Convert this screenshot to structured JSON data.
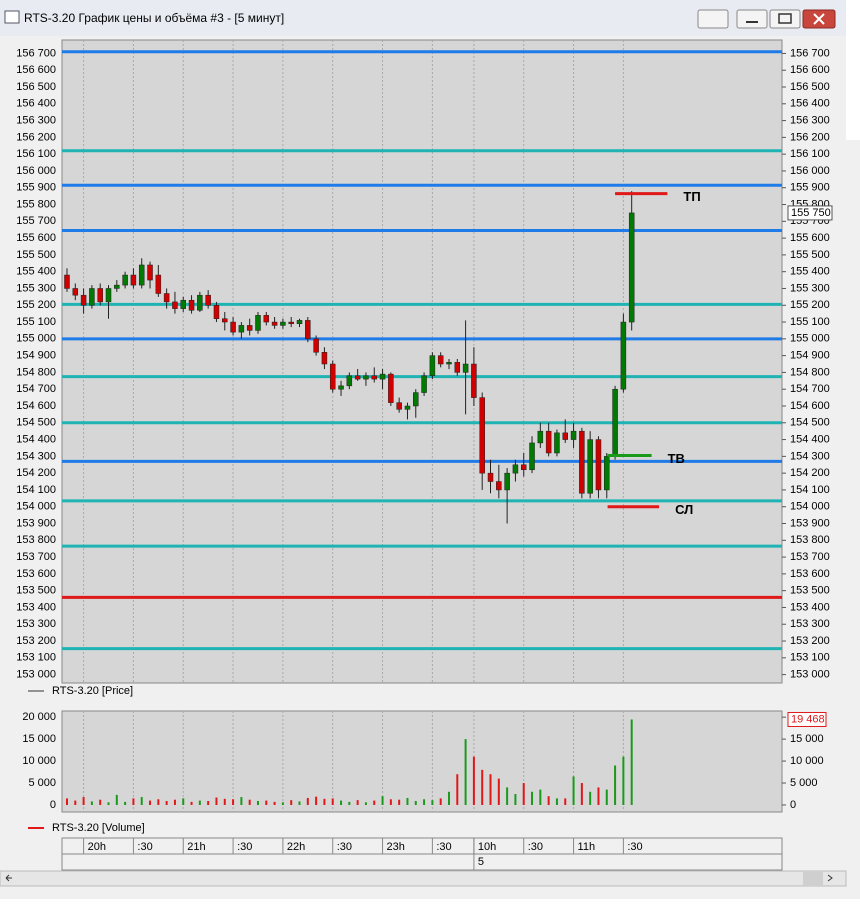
{
  "window": {
    "title": "RTS-3.20 График цены и объёма #3 - [5 минут]"
  },
  "price_chart": {
    "type": "candlestick",
    "legend": "RTS-3.20 [Price]",
    "up_color": "#007a00",
    "down_color": "#d00000",
    "open": [
      155380,
      155300,
      155260,
      155200,
      155300,
      155220,
      155300,
      155320,
      155380,
      155320,
      155440,
      155380,
      155270,
      155220,
      155180,
      155230,
      155170,
      155260,
      155200,
      155120,
      155100,
      155040,
      155080,
      155050,
      155140,
      155100,
      155080,
      155100,
      155090,
      155110,
      155000,
      154920,
      154850,
      154700,
      154720,
      154780,
      154760,
      154780,
      154760,
      154790,
      154620,
      154580,
      154600,
      154680,
      154780,
      154900,
      154850,
      154860,
      154800,
      154850,
      154650,
      154200,
      154150,
      154100,
      154200,
      154250,
      154220,
      154380,
      154450,
      154320,
      154440,
      154400,
      154450,
      154080,
      154400,
      154100,
      154300,
      154700,
      155100
    ],
    "high": [
      155420,
      155330,
      155300,
      155320,
      155330,
      155320,
      155350,
      155400,
      155420,
      155480,
      155460,
      155440,
      155300,
      155280,
      155250,
      155260,
      155280,
      155290,
      155220,
      155160,
      155130,
      155100,
      155120,
      155160,
      155160,
      155130,
      155120,
      155130,
      155120,
      155130,
      155020,
      154950,
      154870,
      154750,
      154800,
      154820,
      154800,
      154830,
      154820,
      154800,
      154650,
      154620,
      154700,
      154800,
      154920,
      154920,
      154880,
      154880,
      155110,
      154950,
      154680,
      154280,
      154250,
      154230,
      154280,
      154320,
      154420,
      154500,
      154500,
      154460,
      154520,
      154500,
      154470,
      154450,
      154420,
      154320,
      154720,
      155150,
      155880
    ],
    "low": [
      155280,
      155230,
      155150,
      155180,
      155200,
      155120,
      155280,
      155300,
      155300,
      155300,
      155300,
      155250,
      155180,
      155150,
      155160,
      155150,
      155160,
      155180,
      155100,
      155050,
      155020,
      155000,
      155020,
      155030,
      155080,
      155060,
      155060,
      155070,
      155070,
      154980,
      154900,
      154820,
      154680,
      154660,
      154700,
      154750,
      154720,
      154740,
      154700,
      154600,
      154560,
      154520,
      154530,
      154660,
      154760,
      154830,
      154820,
      154780,
      154550,
      154600,
      154100,
      154080,
      154050,
      153900,
      154150,
      154180,
      154200,
      154350,
      154300,
      154300,
      154380,
      154350,
      154050,
      154050,
      154050,
      154050,
      154280,
      154680,
      155050
    ],
    "close": [
      155300,
      155260,
      155200,
      155300,
      155220,
      155300,
      155320,
      155380,
      155320,
      155440,
      155350,
      155270,
      155220,
      155180,
      155230,
      155170,
      155260,
      155200,
      155120,
      155100,
      155040,
      155080,
      155050,
      155140,
      155100,
      155080,
      155100,
      155090,
      155110,
      155000,
      154920,
      154850,
      154700,
      154720,
      154780,
      154760,
      154780,
      154760,
      154790,
      154620,
      154580,
      154600,
      154680,
      154780,
      154900,
      154850,
      154860,
      154800,
      154850,
      154650,
      154200,
      154150,
      154100,
      154200,
      154250,
      154220,
      154380,
      154450,
      154320,
      154440,
      154400,
      154450,
      154080,
      154400,
      154100,
      154300,
      154700,
      155100,
      155750
    ],
    "xlim": [
      -0.6,
      86.1
    ],
    "xticks": [
      {
        "value": 2,
        "label": "20h"
      },
      {
        "value": 8,
        "label": ":30"
      },
      {
        "value": 14,
        "label": "21h"
      },
      {
        "value": 20,
        "label": ":30"
      },
      {
        "value": 26,
        "label": "22h"
      },
      {
        "value": 32,
        "label": ":30"
      },
      {
        "value": 38,
        "label": "23h"
      },
      {
        "value": 44,
        "label": ":30"
      },
      {
        "value": 49,
        "label": "10h"
      },
      {
        "value": 55,
        "label": ":30"
      },
      {
        "value": 61,
        "label": "11h"
      },
      {
        "value": 67,
        "label": ":30"
      }
    ],
    "date_labels": [
      {
        "value": 49,
        "label": "5"
      }
    ],
    "ylim": [
      152950,
      156780
    ],
    "yticks": [
      {
        "value": 153000,
        "label": "153 000"
      },
      {
        "value": 153100,
        "label": "153 100"
      },
      {
        "value": 153200,
        "label": "153 200"
      },
      {
        "value": 153300,
        "label": "153 300"
      },
      {
        "value": 153400,
        "label": "153 400"
      },
      {
        "value": 153500,
        "label": "153 500"
      },
      {
        "value": 153600,
        "label": "153 600"
      },
      {
        "value": 153700,
        "label": "153 700"
      },
      {
        "value": 153800,
        "label": "153 800"
      },
      {
        "value": 153900,
        "label": "153 900"
      },
      {
        "value": 154000,
        "label": "154 000"
      },
      {
        "value": 154100,
        "label": "154 100"
      },
      {
        "value": 154200,
        "label": "154 200"
      },
      {
        "value": 154300,
        "label": "154 300"
      },
      {
        "value": 154400,
        "label": "154 400"
      },
      {
        "value": 154500,
        "label": "154 500"
      },
      {
        "value": 154600,
        "label": "154 600"
      },
      {
        "value": 154700,
        "label": "154 700"
      },
      {
        "value": 154800,
        "label": "154 800"
      },
      {
        "value": 154900,
        "label": "154 900"
      },
      {
        "value": 155000,
        "label": "155 000"
      },
      {
        "value": 155100,
        "label": "155 100"
      },
      {
        "value": 155200,
        "label": "155 200"
      },
      {
        "value": 155300,
        "label": "155 300"
      },
      {
        "value": 155400,
        "label": "155 400"
      },
      {
        "value": 155500,
        "label": "155 500"
      },
      {
        "value": 155600,
        "label": "155 600"
      },
      {
        "value": 155700,
        "label": "155 700"
      },
      {
        "value": 155800,
        "label": "155 800"
      },
      {
        "value": 155900,
        "label": "155 900"
      },
      {
        "value": 156000,
        "label": "156 000"
      },
      {
        "value": 156100,
        "label": "156 100"
      },
      {
        "value": 156200,
        "label": "156 200"
      },
      {
        "value": 156300,
        "label": "156 300"
      },
      {
        "value": 156400,
        "label": "156 400"
      },
      {
        "value": 156500,
        "label": "156 500"
      },
      {
        "value": 156600,
        "label": "156 600"
      },
      {
        "value": 156700,
        "label": "156 700"
      }
    ],
    "last_price": {
      "value": 155750,
      "label": "155 750"
    },
    "levels": [
      {
        "value": 156710,
        "color": "#1e7be8"
      },
      {
        "value": 156120,
        "color": "#1fb3b3"
      },
      {
        "value": 155915,
        "color": "#1e7be8"
      },
      {
        "value": 155645,
        "color": "#1e7be8"
      },
      {
        "value": 155205,
        "color": "#1fb3b3"
      },
      {
        "value": 155000,
        "color": "#1e7be8"
      },
      {
        "value": 154775,
        "color": "#1fb3b3"
      },
      {
        "value": 154500,
        "color": "#1fb3b3"
      },
      {
        "value": 154270,
        "color": "#1e7be8"
      },
      {
        "value": 154035,
        "color": "#1fb3b3"
      },
      {
        "value": 153765,
        "color": "#1fb3b3"
      },
      {
        "value": 153460,
        "color": "#e01818"
      },
      {
        "value": 153155,
        "color": "#1fb3b3"
      }
    ],
    "annotations": [
      {
        "label": "ТП",
        "value": 155865,
        "x": [
          66,
          72.3
        ],
        "color": "#e01818"
      },
      {
        "label": "ТВ",
        "value": 154305,
        "x": [
          65.1,
          70.4
        ],
        "color": "#1a9a1a"
      },
      {
        "label": "СЛ",
        "value": 154000,
        "x": [
          65.1,
          71.3
        ],
        "color": "#e01818"
      }
    ]
  },
  "volume_chart": {
    "type": "bar",
    "legend": "RTS-3.20 [Volume]",
    "values": [
      1500,
      1000,
      1800,
      800,
      1200,
      600,
      2300,
      700,
      1500,
      1800,
      1000,
      1300,
      900,
      1200,
      1500,
      700,
      1000,
      900,
      1700,
      1400,
      1300,
      1800,
      1200,
      900,
      1000,
      700,
      600,
      1100,
      800,
      1600,
      1900,
      1400,
      1500,
      1000,
      700,
      1100,
      600,
      1000,
      2000,
      1300,
      1200,
      1600,
      900,
      1300,
      1100,
      1500,
      3000,
      7000,
      15000,
      11000,
      8000,
      7000,
      6000,
      4000,
      2500,
      5000,
      3000,
      3500,
      2000,
      1500,
      1500,
      6500,
      5000,
      3000,
      4000,
      3500,
      9000,
      11000,
      19468
    ],
    "ylim": [
      -1600,
      21400
    ],
    "yticks": [
      0,
      {
        "value": 5000,
        "label": "5 000"
      },
      {
        "value": 10000,
        "label": "10 000"
      },
      {
        "value": 15000,
        "label": "15 000"
      },
      {
        "value": 20000,
        "label": "20 000"
      }
    ],
    "last_value": {
      "value": 19468,
      "label": "19 468"
    }
  }
}
